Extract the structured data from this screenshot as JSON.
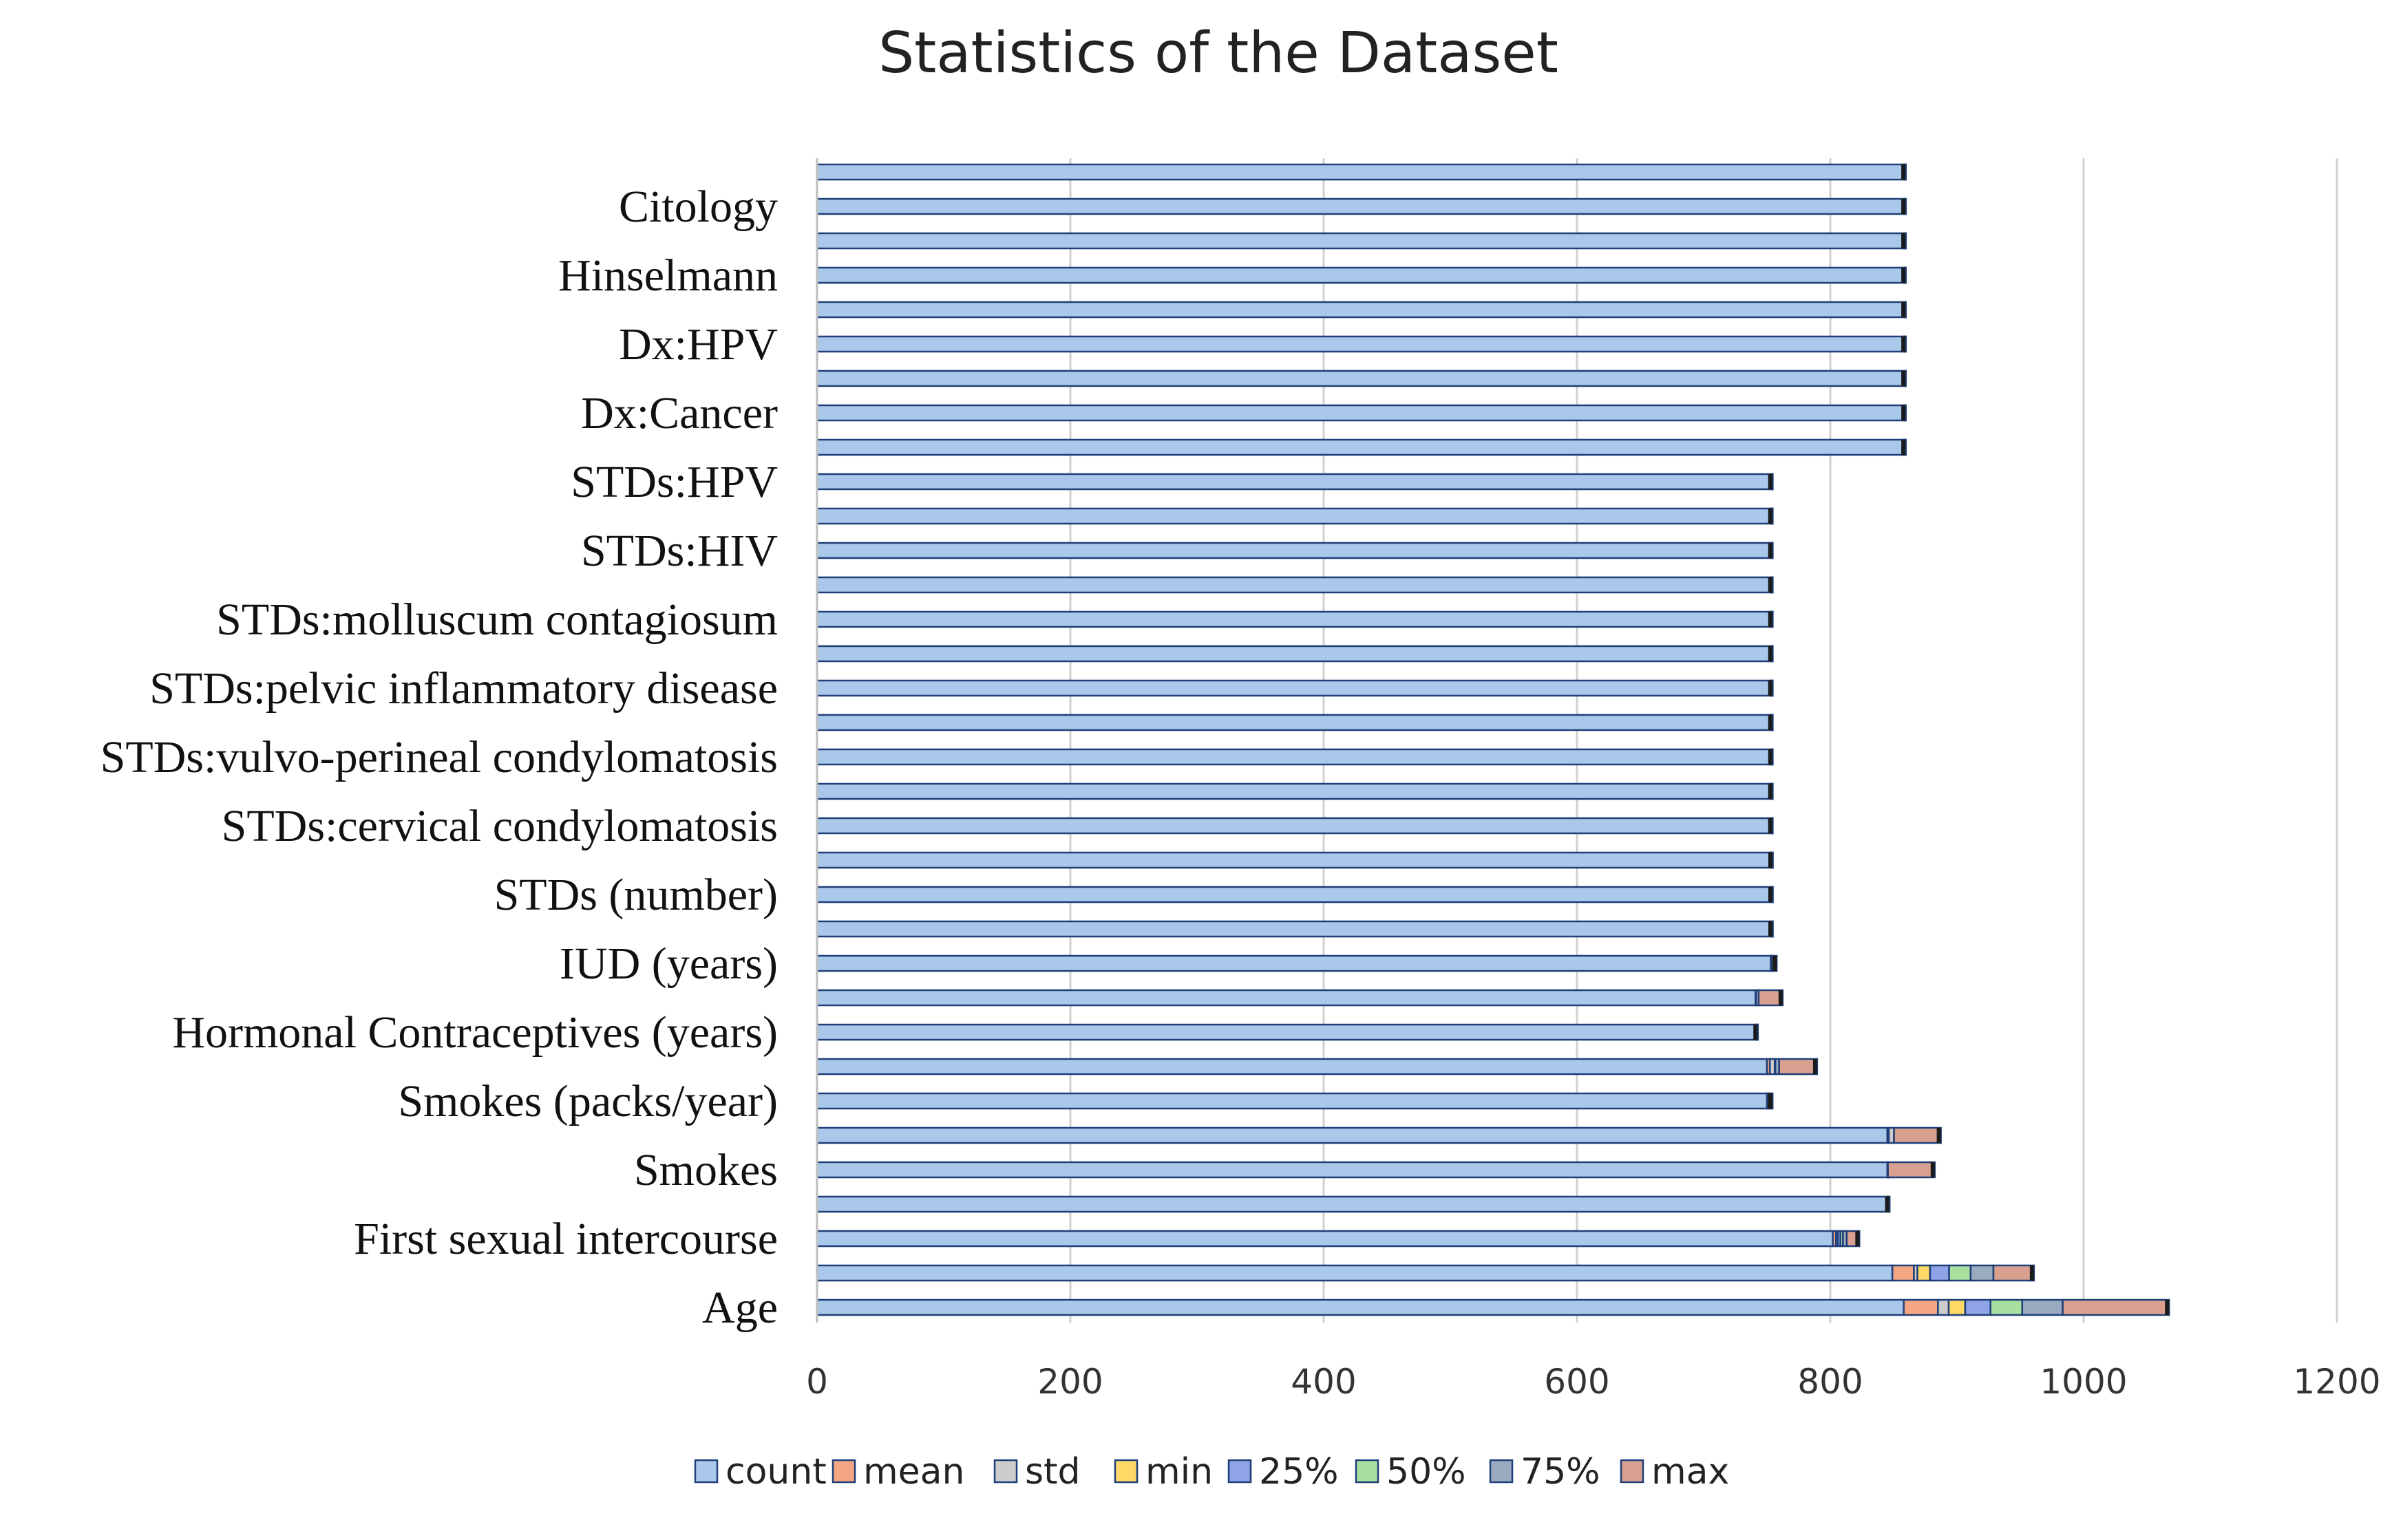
{
  "chart_data": {
    "type": "bar",
    "stacked": true,
    "orientation": "horizontal",
    "title": "Statistics of the Dataset",
    "xlim": [
      0,
      1200
    ],
    "xticks": [
      0,
      200,
      400,
      600,
      800,
      1000,
      1200
    ],
    "grid": "vertical",
    "legend_position": "bottom",
    "visible_category_labels": [
      "Citology",
      "Hinselmann",
      "Dx:HPV",
      "Dx:Cancer",
      "STDs:HPV",
      "STDs:HIV",
      "STDs:molluscum contagiosum",
      "STDs:pelvic inflammatory disease",
      "STDs:vulvo-perineal condylomatosis",
      "STDs:cervical condylomatosis",
      "STDs (number)",
      "IUD (years)",
      "Hormonal Contraceptives (years)",
      "Smokes (packs/year)",
      "Smokes",
      "First sexual intercourse",
      "Age"
    ],
    "label_rows": [
      1,
      3,
      5,
      7,
      9,
      11,
      13,
      15,
      17,
      19,
      21,
      23,
      25,
      27,
      29,
      31,
      33
    ],
    "series": [
      {
        "name": "count",
        "color": "#a9c8ea",
        "values": [
          858,
          858,
          858,
          858,
          858,
          858,
          858,
          858,
          858,
          753,
          753,
          753,
          753,
          753,
          753,
          753,
          753,
          753,
          753,
          753,
          753,
          753,
          753,
          753,
          741,
          741,
          750,
          750,
          845,
          845,
          845,
          802,
          849,
          858
        ]
      },
      {
        "name": "mean",
        "color": "#f4a582",
        "values": [
          0.1,
          0.1,
          0.1,
          0.1,
          0.1,
          0.1,
          0.1,
          0.1,
          0.1,
          0.1,
          0.1,
          0.1,
          0.1,
          0.1,
          0.1,
          0.1,
          0.1,
          0.1,
          0.1,
          0.1,
          0.1,
          0.1,
          0.1,
          0.2,
          0.5,
          0.1,
          2.3,
          0.6,
          1.2,
          0.1,
          0.1,
          2.5,
          17,
          27
        ]
      },
      {
        "name": "std",
        "color": "#cccccc",
        "values": [
          0.2,
          0.2,
          0.2,
          0.2,
          0.2,
          0.2,
          0.2,
          0.2,
          0.2,
          0.1,
          0.1,
          0.1,
          0.1,
          0.1,
          0.1,
          0.1,
          0.1,
          0.1,
          0.1,
          0.1,
          0.2,
          0.2,
          0.2,
          0.5,
          1.9,
          0.4,
          3.8,
          0.5,
          4.1,
          0.4,
          0.4,
          1.5,
          2.8,
          8.5
        ]
      },
      {
        "name": "min",
        "color": "#ffd966",
        "values": [
          0,
          0,
          0,
          0,
          0,
          0,
          0,
          0,
          0,
          0,
          0,
          0,
          0,
          0,
          0,
          0,
          0,
          0,
          0,
          0,
          0,
          0,
          0,
          0,
          0,
          0,
          0,
          0,
          0,
          0,
          0,
          0,
          10,
          13
        ]
      },
      {
        "name": "25%",
        "color": "#8fa3e6",
        "values": [
          0,
          0,
          0,
          0,
          0,
          0,
          0,
          0,
          0,
          0,
          0,
          0,
          0,
          0,
          0,
          0,
          0,
          0,
          0,
          0,
          0,
          0,
          0,
          0,
          0,
          0,
          0,
          0,
          0,
          0,
          0,
          2,
          15,
          20
        ]
      },
      {
        "name": "50%",
        "color": "#a8e0a0",
        "values": [
          0,
          0,
          0,
          0,
          0,
          0,
          0,
          0,
          0,
          0,
          0,
          0,
          0,
          0,
          0,
          0,
          0,
          0,
          0,
          0,
          0,
          0,
          0,
          0,
          0,
          0,
          0.5,
          1,
          0,
          0,
          0,
          2,
          17,
          25
        ]
      },
      {
        "name": "75%",
        "color": "#9aaabf",
        "values": [
          0,
          0,
          0,
          0,
          0,
          0,
          0,
          0,
          0,
          0,
          0,
          0,
          0,
          0,
          0,
          0,
          0,
          0,
          0,
          0,
          0,
          0,
          0,
          0,
          0,
          0,
          3,
          1,
          0,
          0,
          0,
          3,
          18,
          32
        ]
      },
      {
        "name": "max",
        "color": "#d9a090",
        "values": [
          1,
          1,
          1,
          1,
          1,
          1,
          1,
          1,
          1,
          1,
          1,
          1,
          1,
          1,
          1,
          1,
          1,
          1,
          1,
          1,
          1,
          1,
          1,
          4,
          19,
          1,
          30,
          1,
          37,
          37,
          1,
          10,
          32,
          84
        ]
      }
    ]
  }
}
